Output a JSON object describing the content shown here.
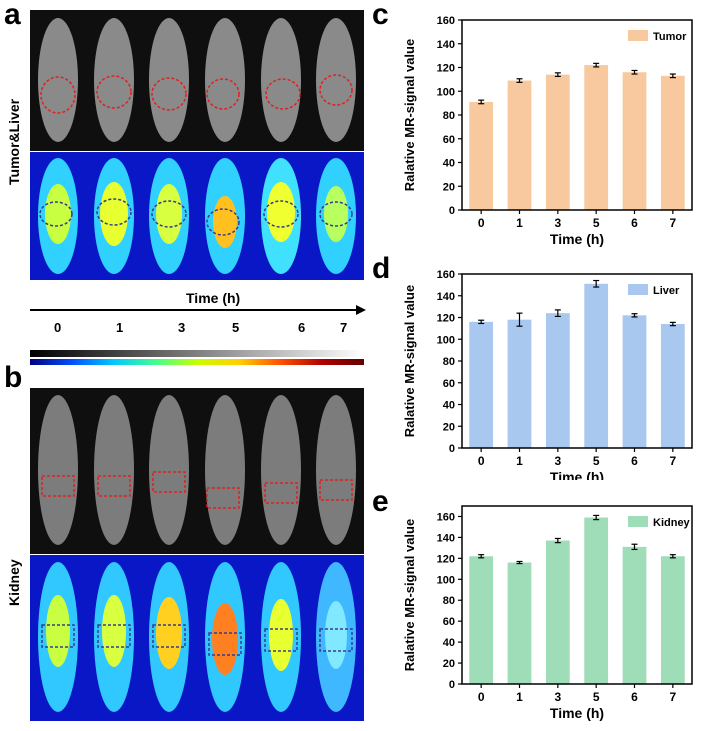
{
  "panels": {
    "a": {
      "letter": "a",
      "row_label": "Tumor&Liver"
    },
    "b": {
      "letter": "b",
      "row_label": "Kidney"
    },
    "c": {
      "letter": "c"
    },
    "d": {
      "letter": "d"
    },
    "e": {
      "letter": "e"
    }
  },
  "timeline": {
    "title": "Time (h)",
    "ticks": [
      "0",
      "1",
      "3",
      "5",
      "6",
      "7"
    ]
  },
  "colors": {
    "tumor": "#f8c89e",
    "liver": "#a9c8f0",
    "kidney": "#9fdcb8",
    "heat_bg": "#0a17c6",
    "gray_bg": "#0f0f0f",
    "roi_dash": "#e02020"
  },
  "chart_data": [
    {
      "id": "c",
      "type": "bar",
      "categories": [
        "0",
        "1",
        "3",
        "5",
        "6",
        "7"
      ],
      "series": [
        {
          "name": "Tumor",
          "values": [
            91,
            109,
            114,
            122,
            116,
            113
          ],
          "errors": [
            1.5,
            1.5,
            1.5,
            1.5,
            1.5,
            1.5
          ]
        }
      ],
      "xlabel": "Time (h)",
      "ylabel": "Ralative MR-signal value",
      "ylim": [
        0,
        160
      ],
      "yticks": [
        "0",
        "20",
        "40",
        "60",
        "80",
        "100",
        "120",
        "140",
        "160"
      ],
      "legend": "top-right"
    },
    {
      "id": "d",
      "type": "bar",
      "categories": [
        "0",
        "1",
        "3",
        "5",
        "6",
        "7"
      ],
      "series": [
        {
          "name": "Liver",
          "values": [
            116,
            118,
            124,
            151,
            122,
            114
          ],
          "errors": [
            1.5,
            6,
            3,
            3,
            1.5,
            1.5
          ]
        }
      ],
      "xlabel": "Time (h)",
      "ylabel": "Ralative MR-signal value",
      "ylim": [
        0,
        160
      ],
      "yticks": [
        "0",
        "20",
        "40",
        "60",
        "80",
        "100",
        "120",
        "140",
        "160"
      ],
      "legend": "top-right"
    },
    {
      "id": "e",
      "type": "bar",
      "categories": [
        "0",
        "1",
        "3",
        "5",
        "6",
        "7"
      ],
      "series": [
        {
          "name": "Kidney",
          "values": [
            122,
            116,
            137,
            159,
            131,
            122
          ],
          "errors": [
            1.5,
            1,
            2,
            2,
            2.5,
            1.5
          ]
        }
      ],
      "xlabel": "Time (h)",
      "ylabel": "Ralative MR-signal value",
      "ylim": [
        0,
        170
      ],
      "yticks": [
        "0",
        "20",
        "40",
        "60",
        "80",
        "100",
        "120",
        "140",
        "160"
      ],
      "legend": "top-right"
    }
  ]
}
